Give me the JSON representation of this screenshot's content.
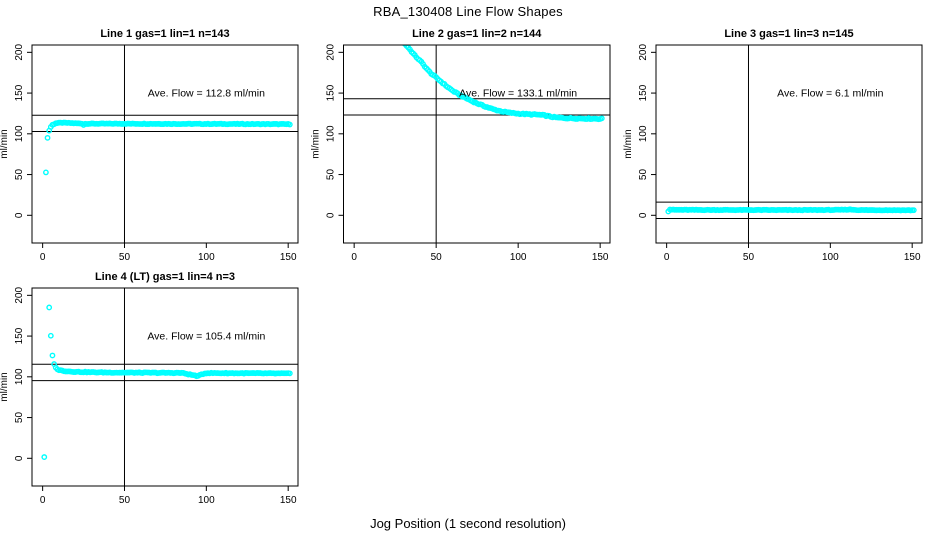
{
  "main_title": "RBA_130408  Line Flow Shapes",
  "x_axis_label": "Jog Position (1 second resolution)",
  "colors": {
    "points": "#00FFFF",
    "axis": "#000000",
    "ref_line": "#000000",
    "background": "#FFFFFF"
  },
  "chart_data": [
    {
      "type": "scatter",
      "title": "Line 1 gas=1 lin=1 n=143",
      "n_points": 143,
      "ave_flow_ml_min": 112.8,
      "annotation": "Ave. Flow =  112.8  ml/min",
      "annotation_pos": {
        "x": 100,
        "y": 150
      },
      "ylabel": "ml/min",
      "xticks": [
        0,
        50,
        100,
        150
      ],
      "yticks": [
        0,
        50,
        100,
        150,
        200
      ],
      "xlim": [
        -6.5,
        156
      ],
      "ylim": [
        -34,
        209
      ],
      "vline_x": 50,
      "hlines": [
        122.8,
        102.8
      ],
      "series": [
        {
          "name": "flow-trace",
          "segments": [
            {
              "step": 1,
              "jitter": 0.4,
              "anchors": [
                [
                  2,
                  53
                ],
                [
                  3,
                  95
                ],
                [
                  4,
                  104
                ],
                [
                  5,
                  108.5
                ],
                [
                  6,
                  111
                ],
                [
                  8,
                  113
                ],
                [
                  12,
                  113.6
                ],
                [
                  18,
                  113.1
                ],
                [
                  24,
                  112.6
                ],
                [
                  25,
                  111
                ],
                [
                  26,
                  112.4
                ],
                [
                  50,
                  112.4
                ],
                [
                  80,
                  112.2
                ],
                [
                  110,
                  112.1
                ],
                [
                  140,
                  111.9
                ],
                [
                  151,
                  111.8
                ]
              ]
            }
          ]
        }
      ]
    },
    {
      "type": "scatter",
      "title": "Line 2 gas=1 lin=2 n=144",
      "n_points": 144,
      "ave_flow_ml_min": 133.1,
      "annotation": "Ave. Flow =  133.1  ml/min",
      "annotation_pos": {
        "x": 100,
        "y": 150
      },
      "ylabel": "ml/min",
      "xticks": [
        0,
        50,
        100,
        150
      ],
      "yticks": [
        0,
        50,
        100,
        150,
        200
      ],
      "xlim": [
        -6.5,
        156
      ],
      "ylim": [
        -34,
        209
      ],
      "vline_x": 50,
      "hlines": [
        143.1,
        123.1
      ],
      "series": [
        {
          "name": "flow-trace",
          "segments": [
            {
              "step": 1,
              "jitter": 0.7,
              "anchors": [
                [
                  27,
                  221
                ],
                [
                  29,
                  215
                ],
                [
                  31,
                  210
                ],
                [
                  33,
                  206
                ],
                [
                  35,
                  201
                ],
                [
                  37,
                  196
                ],
                [
                  39,
                  192
                ],
                [
                  41,
                  188
                ],
                [
                  43,
                  183
                ],
                [
                  45,
                  178
                ],
                [
                  47,
                  174
                ],
                [
                  50,
                  169
                ],
                [
                  53,
                  164
                ],
                [
                  56,
                  159
                ],
                [
                  60,
                  153
                ],
                [
                  64,
                  148
                ],
                [
                  68,
                  144
                ],
                [
                  72,
                  140
                ],
                [
                  76,
                  136.5
                ],
                [
                  80,
                  133.5
                ],
                [
                  85,
                  130
                ],
                [
                  90,
                  127.5
                ],
                [
                  95,
                  125.8
                ],
                [
                  100,
                  124.8
                ],
                [
                  106,
                  124
                ],
                [
                  112,
                  123.5
                ],
                [
                  116,
                  122.6
                ],
                [
                  120,
                  121
                ],
                [
                  124,
                  119.8
                ],
                [
                  128,
                  119.4
                ],
                [
                  134,
                  119
                ],
                [
                  140,
                  118.8
                ],
                [
                  146,
                  118.6
                ],
                [
                  151,
                  118.4
                ]
              ]
            }
          ]
        }
      ]
    },
    {
      "type": "scatter",
      "title": "Line 3 gas=1 lin=3 n=145",
      "n_points": 145,
      "ave_flow_ml_min": 6.1,
      "annotation": "Ave. Flow =  6.1  ml/min",
      "annotation_pos": {
        "x": 100,
        "y": 150
      },
      "ylabel": "ml/min",
      "xticks": [
        0,
        50,
        100,
        150
      ],
      "yticks": [
        0,
        50,
        100,
        150,
        200
      ],
      "xlim": [
        -6.5,
        156
      ],
      "ylim": [
        -34,
        209
      ],
      "vline_x": 50,
      "hlines": [
        16.1,
        -3.9
      ],
      "series": [
        {
          "name": "flow-trace",
          "segments": [
            {
              "step": 1,
              "jitter": 0.35,
              "anchors": [
                [
                  1,
                  5
                ],
                [
                  2,
                  7.2
                ],
                [
                  4,
                  6.7
                ],
                [
                  20,
                  6.6
                ],
                [
                  50,
                  6.5
                ],
                [
                  80,
                  6.4
                ],
                [
                  105,
                  6.6
                ],
                [
                  112,
                  7.1
                ],
                [
                  118,
                  6.4
                ],
                [
                  140,
                  6.3
                ],
                [
                  151,
                  6.2
                ]
              ]
            }
          ]
        }
      ]
    },
    {
      "type": "scatter",
      "title": "Line 4 (LT) gas=1 lin=4 n=3",
      "n_points": 3,
      "ave_flow_ml_min": 105.4,
      "annotation": "Ave. Flow =  105.4  ml/min",
      "annotation_pos": {
        "x": 100,
        "y": 150
      },
      "ylabel": "ml/min",
      "xticks": [
        0,
        50,
        100,
        150
      ],
      "yticks": [
        0,
        50,
        100,
        150,
        200
      ],
      "xlim": [
        -6.5,
        156
      ],
      "ylim": [
        -34,
        209
      ],
      "vline_x": 50,
      "hlines": [
        115.4,
        95.4
      ],
      "series": [
        {
          "name": "flow-trace",
          "segments": [
            {
              "step": 1,
              "jitter": 0,
              "anchors": [
                [
                  1,
                  1.5
                ]
              ]
            },
            {
              "step": 1,
              "jitter": 0.5,
              "anchors": [
                [
                  4,
                  185
                ],
                [
                  5,
                  150
                ],
                [
                  6,
                  126
                ],
                [
                  7,
                  116
                ],
                [
                  8,
                  111
                ],
                [
                  10,
                  108.3
                ],
                [
                  13,
                  107.2
                ],
                [
                  17,
                  106.5
                ],
                [
                  22,
                  106
                ],
                [
                  30,
                  105.6
                ],
                [
                  40,
                  105.3
                ],
                [
                  55,
                  105.1
                ],
                [
                  70,
                  104.9
                ],
                [
                  85,
                  104.8
                ],
                [
                  92,
                  102
                ],
                [
                  95,
                  100.8
                ],
                [
                  97,
                  103
                ],
                [
                  100,
                  104.6
                ],
                [
                  115,
                  104.5
                ],
                [
                  130,
                  104.3
                ],
                [
                  145,
                  104.1
                ],
                [
                  151,
                  104
                ]
              ]
            }
          ]
        }
      ]
    }
  ]
}
